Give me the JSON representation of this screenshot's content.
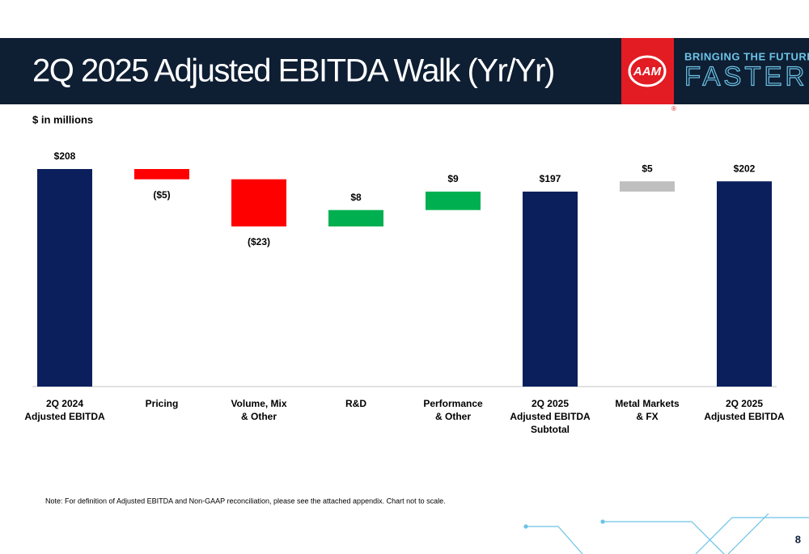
{
  "chart_data": {
    "type": "waterfall",
    "title": "2Q 2025 Adjusted EBITDA Walk (Yr/Yr)",
    "subtitle": "$ in millions",
    "categories": [
      "2Q 2024\nAdjusted EBITDA",
      "Pricing",
      "Volume, Mix\n& Other",
      "R&D",
      "Performance\n& Other",
      "2Q 2025\nAdjusted EBITDA\nSubtotal",
      "Metal Markets\n& FX",
      "2Q 2025\nAdjusted EBITDA"
    ],
    "values": [
      208,
      -5,
      -23,
      8,
      9,
      197,
      5,
      202
    ],
    "value_labels": [
      "$208",
      "($5)",
      "($23)",
      "$8",
      "$9",
      "$197",
      "$5",
      "$202"
    ],
    "totals": [
      true,
      false,
      false,
      false,
      false,
      true,
      false,
      true
    ],
    "colors": [
      "#0b1f5c",
      "#ff0000",
      "#ff0000",
      "#00b050",
      "#00b050",
      "#0b1f5c",
      "#bfbfbf",
      "#0b1f5c"
    ],
    "note": "Note: For definition of Adjusted EBITDA and Non-GAAP reconciliation, please see the attached appendix. Chart not to scale."
  },
  "logo": {
    "mark": "AAM",
    "tagline": "BRINGING THE FUTURE",
    "word": "FASTER",
    "registered": "®"
  },
  "page_number": 8
}
